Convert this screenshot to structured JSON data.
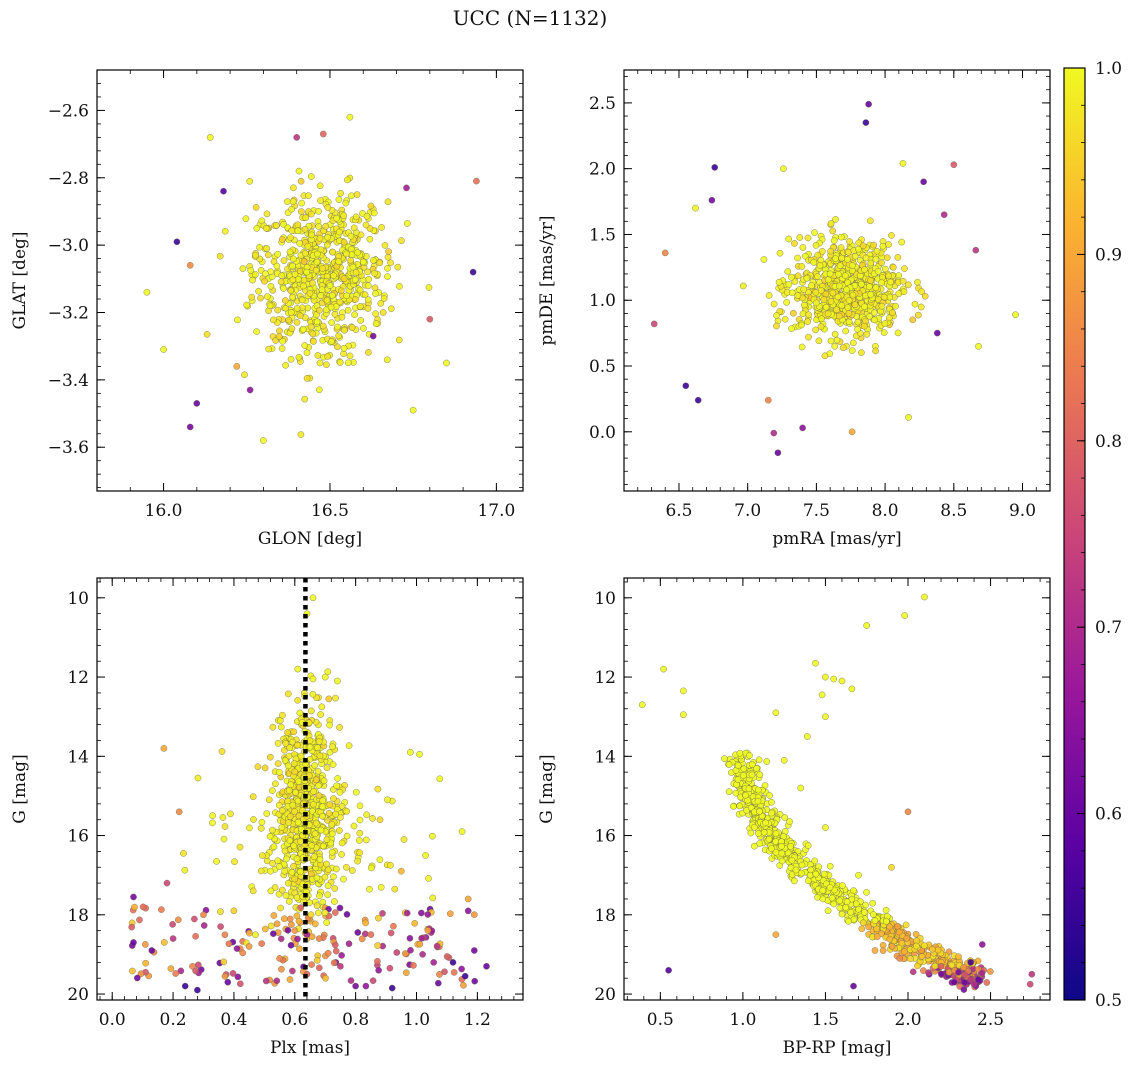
{
  "figure": {
    "suptitle": "UCC (N=1132)",
    "colorbar": {
      "min": 0.5,
      "max": 1.0,
      "ticks": [
        "0.5",
        "0.6",
        "0.7",
        "0.8",
        "0.9",
        "1.0"
      ],
      "colormap_stops": [
        "#0d0887",
        "#5b02a3",
        "#9a179b",
        "#cb4678",
        "#eb7852",
        "#fbb32f",
        "#f0f921"
      ]
    }
  },
  "chart_data": [
    {
      "type": "scatter",
      "name": "glon-glat",
      "xlabel": "GLON [deg]",
      "ylabel": "GLAT [deg]",
      "xlim": [
        15.8,
        17.08
      ],
      "ylim": [
        -3.73,
        -2.48
      ],
      "y_inverted": false,
      "xticks": [
        "16.0",
        "16.5",
        "17.0"
      ],
      "yticks": [
        "−2.6",
        "−2.8",
        "−3.0",
        "−3.2",
        "−3.4",
        "−3.6"
      ],
      "cluster": {
        "center": [
          16.47,
          -3.08
        ],
        "spread": [
          0.1,
          0.12
        ]
      },
      "points": [
        {
          "x": 16.43,
          "y": -3.08,
          "c": 1.0
        },
        {
          "x": 16.5,
          "y": -3.12,
          "c": 1.0
        },
        {
          "x": 16.38,
          "y": -3.02,
          "c": 0.99
        },
        {
          "x": 16.55,
          "y": -3.15,
          "c": 1.0
        },
        {
          "x": 16.47,
          "y": -2.98,
          "c": 0.98
        },
        {
          "x": 16.6,
          "y": -3.05,
          "c": 1.0
        },
        {
          "x": 16.32,
          "y": -3.18,
          "c": 0.99
        },
        {
          "x": 16.42,
          "y": -3.25,
          "c": 1.0
        },
        {
          "x": 16.52,
          "y": -2.92,
          "c": 1.0
        },
        {
          "x": 16.66,
          "y": -3.2,
          "c": 0.97
        },
        {
          "x": 16.28,
          "y": -2.95,
          "c": 1.0
        },
        {
          "x": 16.47,
          "y": -3.35,
          "c": 0.99
        },
        {
          "x": 16.18,
          "y": -2.84,
          "c": 0.58
        },
        {
          "x": 16.48,
          "y": -2.67,
          "c": 0.8
        },
        {
          "x": 16.26,
          "y": -3.43,
          "c": 0.65
        },
        {
          "x": 16.1,
          "y": -3.47,
          "c": 0.6
        },
        {
          "x": 16.08,
          "y": -3.54,
          "c": 0.62
        },
        {
          "x": 16.93,
          "y": -3.08,
          "c": 0.55
        },
        {
          "x": 16.63,
          "y": -3.27,
          "c": 0.62
        },
        {
          "x": 16.73,
          "y": -2.83,
          "c": 0.68
        },
        {
          "x": 16.4,
          "y": -2.68,
          "c": 0.72
        },
        {
          "x": 16.04,
          "y": -2.99,
          "c": 0.55
        },
        {
          "x": 16.94,
          "y": -2.81,
          "c": 0.82
        },
        {
          "x": 16.56,
          "y": -2.62,
          "c": 1.0
        },
        {
          "x": 15.95,
          "y": -3.14,
          "c": 1.0
        },
        {
          "x": 16.85,
          "y": -3.35,
          "c": 1.0
        },
        {
          "x": 16.3,
          "y": -3.58,
          "c": 1.0
        },
        {
          "x": 16.75,
          "y": -3.49,
          "c": 1.0
        },
        {
          "x": 16.0,
          "y": -3.31,
          "c": 1.0
        },
        {
          "x": 16.14,
          "y": -2.68,
          "c": 1.0
        },
        {
          "x": 16.08,
          "y": -3.06,
          "c": 0.86
        },
        {
          "x": 16.22,
          "y": -3.36,
          "c": 0.9
        },
        {
          "x": 16.8,
          "y": -3.22,
          "c": 0.78
        }
      ]
    },
    {
      "type": "scatter",
      "name": "pmra-pmde",
      "xlabel": "pmRA [mas/yr]",
      "ylabel": "pmDE [mas/yr]",
      "xlim": [
        6.1,
        9.2
      ],
      "ylim": [
        -0.45,
        2.75
      ],
      "y_inverted": false,
      "xticks": [
        "6.5",
        "7.0",
        "7.5",
        "8.0",
        "8.5",
        "9.0"
      ],
      "yticks": [
        "0.0",
        "0.5",
        "1.0",
        "1.5",
        "2.0",
        "2.5"
      ],
      "cluster": {
        "center": [
          7.72,
          1.08
        ],
        "spread": [
          0.2,
          0.18
        ]
      },
      "points": [
        {
          "x": 7.72,
          "y": 1.08,
          "c": 1.0
        },
        {
          "x": 7.6,
          "y": 1.2,
          "c": 1.0
        },
        {
          "x": 7.85,
          "y": 0.95,
          "c": 1.0
        },
        {
          "x": 7.5,
          "y": 0.98,
          "c": 0.99
        },
        {
          "x": 7.95,
          "y": 1.22,
          "c": 1.0
        },
        {
          "x": 7.68,
          "y": 1.4,
          "c": 0.98
        },
        {
          "x": 7.8,
          "y": 0.78,
          "c": 1.0
        },
        {
          "x": 8.1,
          "y": 1.05,
          "c": 0.99
        },
        {
          "x": 7.3,
          "y": 1.12,
          "c": 1.0
        },
        {
          "x": 7.88,
          "y": 2.49,
          "c": 0.6
        },
        {
          "x": 7.86,
          "y": 2.35,
          "c": 0.55
        },
        {
          "x": 6.76,
          "y": 2.01,
          "c": 0.55
        },
        {
          "x": 6.74,
          "y": 1.76,
          "c": 0.62
        },
        {
          "x": 6.55,
          "y": 0.35,
          "c": 0.55
        },
        {
          "x": 6.64,
          "y": 0.24,
          "c": 0.55
        },
        {
          "x": 7.22,
          "y": -0.16,
          "c": 0.6
        },
        {
          "x": 7.19,
          "y": -0.01,
          "c": 0.7
        },
        {
          "x": 7.76,
          "y": 0.0,
          "c": 0.9
        },
        {
          "x": 8.5,
          "y": 2.03,
          "c": 0.78
        },
        {
          "x": 8.66,
          "y": 1.38,
          "c": 0.72
        },
        {
          "x": 8.38,
          "y": 0.75,
          "c": 0.6
        },
        {
          "x": 6.32,
          "y": 0.82,
          "c": 0.75
        },
        {
          "x": 6.4,
          "y": 1.36,
          "c": 0.85
        },
        {
          "x": 8.95,
          "y": 0.89,
          "c": 1.0
        },
        {
          "x": 8.13,
          "y": 2.04,
          "c": 1.0
        },
        {
          "x": 8.68,
          "y": 0.65,
          "c": 1.0
        },
        {
          "x": 8.17,
          "y": 0.11,
          "c": 1.0
        },
        {
          "x": 6.62,
          "y": 1.7,
          "c": 1.0
        },
        {
          "x": 7.26,
          "y": 2.0,
          "c": 1.0
        },
        {
          "x": 7.15,
          "y": 0.24,
          "c": 0.85
        },
        {
          "x": 7.4,
          "y": 0.03,
          "c": 0.65
        },
        {
          "x": 8.43,
          "y": 1.65,
          "c": 0.7
        },
        {
          "x": 8.28,
          "y": 1.9,
          "c": 0.6
        }
      ]
    },
    {
      "type": "scatter",
      "name": "plx-g",
      "xlabel": "Plx [mas]",
      "ylabel": "G [mag]",
      "xlim": [
        -0.05,
        1.35
      ],
      "ylim": [
        9.5,
        20.15
      ],
      "y_inverted": true,
      "xticks": [
        "0.0",
        "0.2",
        "0.4",
        "0.6",
        "0.8",
        "1.0",
        "1.2"
      ],
      "yticks": [
        "10",
        "12",
        "14",
        "16",
        "18",
        "20"
      ],
      "vline": {
        "x": 0.635,
        "style": "dotted",
        "color": "#000000"
      },
      "cluster": {
        "center": [
          0.635,
          15.5
        ],
        "spread": [
          0.05,
          1.3
        ]
      },
      "points": [
        {
          "x": 0.66,
          "y": 10.0,
          "c": 1.0
        },
        {
          "x": 0.64,
          "y": 10.4,
          "c": 1.0
        },
        {
          "x": 0.61,
          "y": 11.8,
          "c": 1.0
        },
        {
          "x": 0.66,
          "y": 12.05,
          "c": 1.0
        },
        {
          "x": 0.7,
          "y": 12.0,
          "c": 1.0
        },
        {
          "x": 0.74,
          "y": 12.1,
          "c": 1.0
        },
        {
          "x": 0.17,
          "y": 13.8,
          "c": 0.9
        },
        {
          "x": 0.22,
          "y": 15.4,
          "c": 0.86
        },
        {
          "x": 0.33,
          "y": 15.5,
          "c": 1.0
        },
        {
          "x": 0.98,
          "y": 13.9,
          "c": 1.0
        },
        {
          "x": 1.01,
          "y": 13.95,
          "c": 1.0
        },
        {
          "x": 1.03,
          "y": 16.5,
          "c": 1.0
        },
        {
          "x": 1.15,
          "y": 15.9,
          "c": 1.0
        },
        {
          "x": 1.17,
          "y": 17.6,
          "c": 0.9
        },
        {
          "x": 0.88,
          "y": 15.6,
          "c": 0.96
        },
        {
          "x": 0.07,
          "y": 17.55,
          "c": 0.62
        },
        {
          "x": 0.07,
          "y": 18.7,
          "c": 0.6
        },
        {
          "x": 0.13,
          "y": 18.9,
          "c": 0.6
        },
        {
          "x": 0.24,
          "y": 19.8,
          "c": 0.55
        },
        {
          "x": 0.28,
          "y": 19.9,
          "c": 0.55
        },
        {
          "x": 0.38,
          "y": 19.7,
          "c": 0.6
        },
        {
          "x": 0.92,
          "y": 19.85,
          "c": 0.55
        },
        {
          "x": 1.12,
          "y": 19.2,
          "c": 0.55
        },
        {
          "x": 1.19,
          "y": 18.9,
          "c": 0.62
        },
        {
          "x": 1.23,
          "y": 19.3,
          "c": 0.6
        },
        {
          "x": 1.16,
          "y": 19.55,
          "c": 0.55
        },
        {
          "x": 0.8,
          "y": 19.8,
          "c": 0.62
        },
        {
          "x": 0.18,
          "y": 17.2,
          "c": 0.75
        },
        {
          "x": 0.2,
          "y": 18.6,
          "c": 0.72
        },
        {
          "x": 0.3,
          "y": 18.0,
          "c": 0.85
        },
        {
          "x": 0.45,
          "y": 18.8,
          "c": 0.88
        },
        {
          "x": 0.55,
          "y": 19.1,
          "c": 0.85
        },
        {
          "x": 0.75,
          "y": 19.3,
          "c": 0.72
        },
        {
          "x": 0.85,
          "y": 18.5,
          "c": 0.82
        },
        {
          "x": 1.02,
          "y": 19.0,
          "c": 0.7
        },
        {
          "x": 0.4,
          "y": 17.9,
          "c": 0.95
        },
        {
          "x": 0.52,
          "y": 16.9,
          "c": 1.0
        },
        {
          "x": 0.76,
          "y": 17.1,
          "c": 1.0
        },
        {
          "x": 0.95,
          "y": 16.9,
          "c": 0.92
        },
        {
          "x": 0.6,
          "y": 18.4,
          "c": 0.88
        },
        {
          "x": 0.68,
          "y": 18.6,
          "c": 0.85
        },
        {
          "x": 0.64,
          "y": 19.5,
          "c": 0.8
        }
      ]
    },
    {
      "type": "scatter",
      "name": "bprp-g",
      "xlabel": "BP-RP [mag]",
      "ylabel": "G [mag]",
      "xlim": [
        0.28,
        2.86
      ],
      "ylim": [
        9.5,
        20.15
      ],
      "y_inverted": true,
      "xticks": [
        "0.5",
        "1.0",
        "1.5",
        "2.0",
        "2.5"
      ],
      "yticks": [
        "10",
        "12",
        "14",
        "16",
        "18",
        "20"
      ],
      "sequence": {
        "x": [
          0.98,
          1.05,
          1.15,
          1.3,
          1.5,
          1.7,
          1.9,
          2.1,
          2.3,
          2.4
        ],
        "y": [
          14.0,
          15.0,
          15.9,
          16.6,
          17.3,
          17.9,
          18.5,
          19.0,
          19.4,
          19.6
        ]
      },
      "points": [
        {
          "x": 2.1,
          "y": 9.98,
          "c": 1.0
        },
        {
          "x": 1.98,
          "y": 10.45,
          "c": 1.0
        },
        {
          "x": 1.75,
          "y": 10.7,
          "c": 1.0
        },
        {
          "x": 0.52,
          "y": 11.8,
          "c": 1.0
        },
        {
          "x": 0.64,
          "y": 12.35,
          "c": 1.0
        },
        {
          "x": 0.64,
          "y": 12.95,
          "c": 1.0
        },
        {
          "x": 0.39,
          "y": 12.7,
          "c": 1.0
        },
        {
          "x": 1.44,
          "y": 11.65,
          "c": 1.0
        },
        {
          "x": 1.5,
          "y": 12.0,
          "c": 1.0
        },
        {
          "x": 1.55,
          "y": 12.05,
          "c": 1.0
        },
        {
          "x": 1.6,
          "y": 12.1,
          "c": 1.0
        },
        {
          "x": 1.48,
          "y": 12.45,
          "c": 1.0
        },
        {
          "x": 1.66,
          "y": 12.3,
          "c": 1.0
        },
        {
          "x": 1.2,
          "y": 12.9,
          "c": 1.0
        },
        {
          "x": 1.5,
          "y": 13.0,
          "c": 1.0
        },
        {
          "x": 1.39,
          "y": 13.5,
          "c": 1.0
        },
        {
          "x": 2.0,
          "y": 15.4,
          "c": 0.85
        },
        {
          "x": 1.9,
          "y": 16.8,
          "c": 0.96
        },
        {
          "x": 0.55,
          "y": 19.4,
          "c": 0.58
        },
        {
          "x": 1.67,
          "y": 19.8,
          "c": 0.6
        },
        {
          "x": 2.45,
          "y": 18.75,
          "c": 0.65
        },
        {
          "x": 2.75,
          "y": 19.5,
          "c": 0.72
        },
        {
          "x": 2.74,
          "y": 19.75,
          "c": 0.75
        },
        {
          "x": 2.38,
          "y": 19.2,
          "c": 0.55
        },
        {
          "x": 2.28,
          "y": 19.7,
          "c": 0.6
        },
        {
          "x": 2.2,
          "y": 19.3,
          "c": 0.8
        },
        {
          "x": 1.2,
          "y": 18.5,
          "c": 0.9
        },
        {
          "x": 1.25,
          "y": 14.1,
          "c": 1.0
        },
        {
          "x": 1.35,
          "y": 14.8,
          "c": 1.0
        },
        {
          "x": 1.5,
          "y": 15.8,
          "c": 1.0
        },
        {
          "x": 1.7,
          "y": 17.0,
          "c": 1.0
        },
        {
          "x": 1.8,
          "y": 18.9,
          "c": 0.9
        },
        {
          "x": 1.95,
          "y": 19.1,
          "c": 0.85
        }
      ]
    }
  ]
}
